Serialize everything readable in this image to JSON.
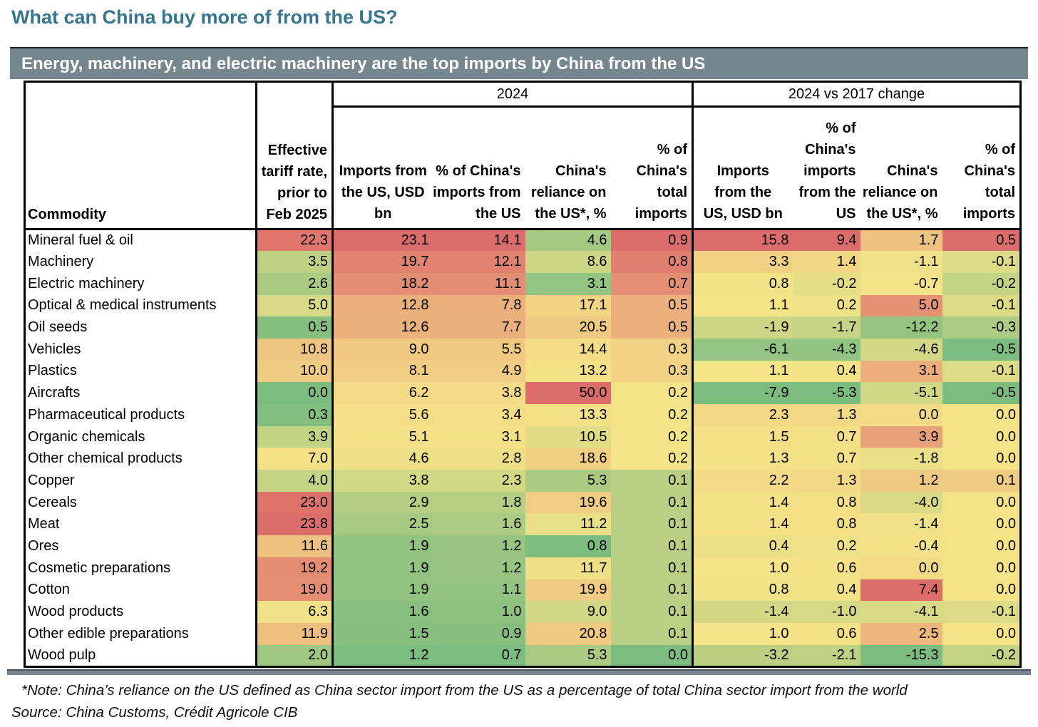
{
  "page": {
    "title": "What can China buy more of from the US?",
    "title_color": "#36758E",
    "band_color": "#76868F"
  },
  "chart_data": {
    "type": "heatmap-table",
    "title": "Energy, machinery, and electric machinery are the top imports by China from the US",
    "row_header": "Commodity",
    "group_headers": [
      "2024",
      "2024 vs 2017 change"
    ],
    "columns": [
      {
        "group": "",
        "label": "Effective\ntariff rate,\nprior to\nFeb 2025"
      },
      {
        "group": "2024",
        "label": "Imports from\nthe US, USD\nbn"
      },
      {
        "group": "2024",
        "label": "% of China's\nimports from\nthe US"
      },
      {
        "group": "2024",
        "label": "China's\nreliance on\nthe US*, %"
      },
      {
        "group": "2024",
        "label": "% of\nChina's\ntotal\nimports"
      },
      {
        "group": "2024 vs 2017 change",
        "label": "Imports\nfrom the\nUS, USD bn"
      },
      {
        "group": "2024 vs 2017 change",
        "label": "% of\nChina's\nimports\nfrom the\nUS"
      },
      {
        "group": "2024 vs 2017 change",
        "label": "China's\nreliance on\nthe US*, %"
      },
      {
        "group": "2024 vs 2017 change",
        "label": "% of\nChina's\ntotal\nimports"
      }
    ],
    "rows": [
      {
        "commodity": "Mineral fuel & oil",
        "values": [
          22.3,
          23.1,
          14.1,
          4.6,
          0.9,
          15.8,
          9.4,
          1.7,
          0.5
        ]
      },
      {
        "commodity": "Machinery",
        "values": [
          3.5,
          19.7,
          12.1,
          8.6,
          0.8,
          3.3,
          1.4,
          -1.1,
          -0.1
        ]
      },
      {
        "commodity": "Electric machinery",
        "values": [
          2.6,
          18.2,
          11.1,
          3.1,
          0.7,
          0.8,
          -0.2,
          -0.7,
          -0.2
        ]
      },
      {
        "commodity": "Optical & medical instruments",
        "values": [
          5.0,
          12.8,
          7.8,
          17.1,
          0.5,
          1.1,
          0.2,
          5.0,
          -0.1
        ]
      },
      {
        "commodity": "Oil seeds",
        "values": [
          0.5,
          12.6,
          7.7,
          20.5,
          0.5,
          -1.9,
          -1.7,
          -12.2,
          -0.3
        ]
      },
      {
        "commodity": "Vehicles",
        "values": [
          10.8,
          9.0,
          5.5,
          14.4,
          0.3,
          -6.1,
          -4.3,
          -4.6,
          -0.5
        ]
      },
      {
        "commodity": "Plastics",
        "values": [
          10.0,
          8.1,
          4.9,
          13.2,
          0.3,
          1.1,
          0.4,
          3.1,
          -0.1
        ]
      },
      {
        "commodity": "Aircrafts",
        "values": [
          0.0,
          6.2,
          3.8,
          50.0,
          0.2,
          -7.9,
          -5.3,
          -5.1,
          -0.5
        ]
      },
      {
        "commodity": "Pharmaceutical products",
        "values": [
          0.3,
          5.6,
          3.4,
          13.3,
          0.2,
          2.3,
          1.3,
          0.0,
          0.0
        ]
      },
      {
        "commodity": "Organic chemicals",
        "values": [
          3.9,
          5.1,
          3.1,
          10.5,
          0.2,
          1.5,
          0.7,
          3.9,
          0.0
        ]
      },
      {
        "commodity": "Other chemical products",
        "values": [
          7.0,
          4.6,
          2.8,
          18.6,
          0.2,
          1.3,
          0.7,
          -1.8,
          0.0
        ]
      },
      {
        "commodity": "Copper",
        "values": [
          4.0,
          3.8,
          2.3,
          5.3,
          0.1,
          2.2,
          1.3,
          1.2,
          0.1
        ]
      },
      {
        "commodity": "Cereals",
        "values": [
          23.0,
          2.9,
          1.8,
          19.6,
          0.1,
          1.4,
          0.8,
          -4.0,
          0.0
        ]
      },
      {
        "commodity": "Meat",
        "values": [
          23.8,
          2.5,
          1.6,
          11.2,
          0.1,
          1.4,
          0.8,
          -1.4,
          0.0
        ]
      },
      {
        "commodity": "Ores",
        "values": [
          11.6,
          1.9,
          1.2,
          0.8,
          0.1,
          0.4,
          0.2,
          -0.4,
          0.0
        ]
      },
      {
        "commodity": "Cosmetic preparations",
        "values": [
          19.2,
          1.9,
          1.2,
          11.7,
          0.1,
          1.0,
          0.6,
          0.0,
          0.0
        ]
      },
      {
        "commodity": "Cotton",
        "values": [
          19.0,
          1.9,
          1.1,
          19.9,
          0.1,
          0.8,
          0.4,
          7.4,
          0.0
        ]
      },
      {
        "commodity": "Wood products",
        "values": [
          6.3,
          1.6,
          1.0,
          9.0,
          0.1,
          -1.4,
          -1.0,
          -4.1,
          -0.1
        ]
      },
      {
        "commodity": "Other edible preparations",
        "values": [
          11.9,
          1.5,
          0.9,
          20.8,
          0.1,
          1.0,
          0.6,
          2.5,
          0.0
        ]
      },
      {
        "commodity": "Wood pulp",
        "values": [
          2.0,
          1.2,
          0.7,
          5.3,
          0.0,
          -3.2,
          -2.1,
          -15.3,
          -0.2
        ]
      }
    ],
    "color_scale": {
      "min_color": "#7CBC7F",
      "mid_color": "#F5E388",
      "max_color": "#DD6D6B",
      "midpoint": "median-per-column",
      "direction": "high=red, low=green"
    },
    "legend_position": "none",
    "grid": false
  },
  "notes": {
    "note": "*Note: China’s reliance on the US defined as China sector import from the US as a percentage of total China sector import from the world",
    "source": "Source: China Customs, Crédit Agricole CIB"
  }
}
